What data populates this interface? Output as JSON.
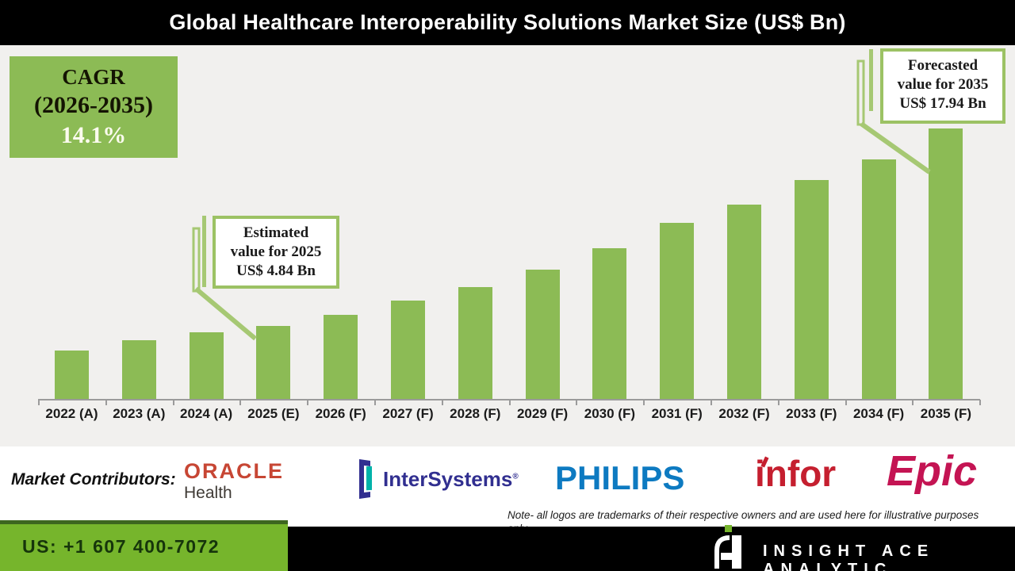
{
  "header": {
    "title": "Global Healthcare Interoperability Solutions Market Size (US$ Bn)"
  },
  "cagr_box": {
    "line1": "CAGR",
    "line2": "(2026-2035)",
    "line3": "14.1%"
  },
  "callouts": {
    "estimated": {
      "line1": "Estimated",
      "line2": "value for 2025",
      "line3": "US$ 4.84 Bn"
    },
    "forecasted": {
      "line1": "Forecasted",
      "line2": "value for 2035",
      "line3": "US$ 17.94 Bn"
    }
  },
  "chart_data": {
    "type": "bar",
    "title": "Global Healthcare Interoperability Solutions Market Size (US$ Bn)",
    "categories": [
      "2022 (A)",
      "2023 (A)",
      "2024 (A)",
      "2025 (E)",
      "2026 (F)",
      "2027 (F)",
      "2028 (F)",
      "2029 (F)",
      "2030 (F)",
      "2031 (F)",
      "2032 (F)",
      "2033 (F)",
      "2034 (F)",
      "2035 (F)"
    ],
    "values": [
      3.2,
      3.9,
      4.4,
      4.84,
      5.6,
      6.5,
      7.4,
      8.6,
      10.0,
      11.7,
      12.9,
      14.5,
      15.9,
      17.94
    ],
    "unit": "US$ Bn",
    "xlabel": "",
    "ylabel": "",
    "ylim": [
      0,
      20
    ],
    "grid": false,
    "legend": null,
    "bar_color": "#8cbb55",
    "annotations": [
      {
        "target": "2025 (E)",
        "text": "Estimated value for 2025 US$ 4.84 Bn"
      },
      {
        "target": "2035 (F)",
        "text": "Forecasted value for 2035 US$ 17.94 Bn"
      },
      {
        "text": "CAGR (2026-2035) 14.1%"
      }
    ]
  },
  "contributors": {
    "label": "Market Contributors:",
    "logos": [
      {
        "name": "Oracle Health",
        "line1": "ORACLE",
        "line2": "Health"
      },
      {
        "name": "InterSystems",
        "text": "InterSystems",
        "reg": "®"
      },
      {
        "name": "Philips",
        "text": "PHILIPS"
      },
      {
        "name": "Infor",
        "text": "infor"
      },
      {
        "name": "Epic",
        "text": "Epic"
      }
    ]
  },
  "note": {
    "line1": "Note- all logos are trademarks of their respective owners and are used here for illustrative purposes",
    "line2": "only."
  },
  "footer": {
    "phone": "US: +1 607 400-7072",
    "brand": "INSIGHT ACE ANALYTIC"
  },
  "colors": {
    "chart_background": "#f1f0ee",
    "bar_green": "#8cbb55",
    "callout_border_green": "#9cc264",
    "leader_green": "#a6c873",
    "footer_green": "#76b52c",
    "footer_green_dark": "#3d661f",
    "title_bar": "#000000",
    "oracle_red": "#c74634",
    "intersystems_navy": "#312f90",
    "intersystems_teal": "#00b2a9",
    "philips_blue": "#0d7ac1",
    "infor_red": "#c51f2f",
    "epic_red": "#c41453"
  }
}
